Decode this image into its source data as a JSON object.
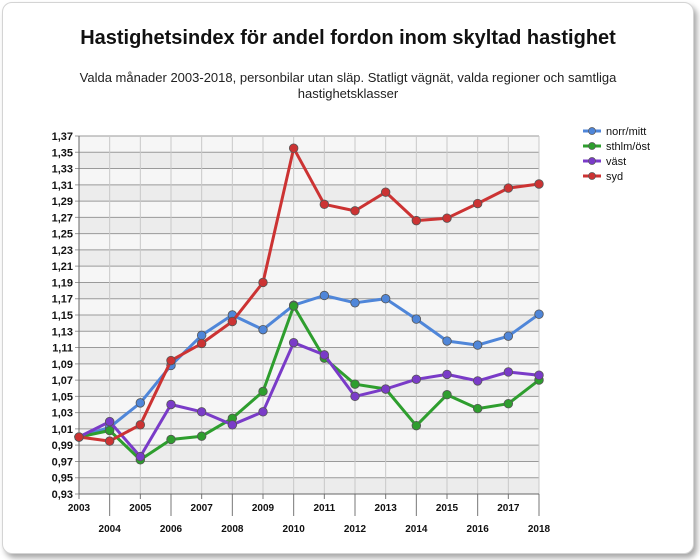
{
  "chart_data": {
    "type": "line",
    "title": "Hastighetsindex för andel fordon inom skyltad hastighet",
    "subtitle": "Valda månader 2003-2018, personbilar utan släp. Statligt vägnät, valda regioner och samtliga hastighetsklasser",
    "xlabel": "",
    "ylabel": "",
    "categories": [
      "2003",
      "2004",
      "2005",
      "2006",
      "2007",
      "2008",
      "2009",
      "2010",
      "2011",
      "2012",
      "2013",
      "2014",
      "2015",
      "2016",
      "2017",
      "2018"
    ],
    "ylim": [
      0.93,
      1.37
    ],
    "ytick_step": 0.02,
    "yticks": [
      "0,93",
      "0,95",
      "0,97",
      "0,99",
      "1,01",
      "1,03",
      "1,05",
      "1,07",
      "1,09",
      "1,11",
      "1,13",
      "1,15",
      "1,17",
      "1,19",
      "1,21",
      "1,23",
      "1,25",
      "1,27",
      "1,29",
      "1,31",
      "1,33",
      "1,35",
      "1,37"
    ],
    "grid": true,
    "legend_position": "top-right",
    "series": [
      {
        "name": "norr/mitt",
        "color": "#4f86d9",
        "values": [
          1.0,
          1.012,
          1.042,
          1.088,
          1.125,
          1.15,
          1.132,
          1.162,
          1.174,
          1.165,
          1.17,
          1.145,
          1.118,
          1.113,
          1.124,
          1.151
        ]
      },
      {
        "name": "sthlm/öst",
        "color": "#2e9e2e",
        "values": [
          1.0,
          1.008,
          0.972,
          0.997,
          1.001,
          1.023,
          1.056,
          1.161,
          1.097,
          1.065,
          1.059,
          1.014,
          1.052,
          1.035,
          1.041,
          1.07
        ]
      },
      {
        "name": "väst",
        "color": "#7a3bc8",
        "values": [
          1.0,
          1.019,
          0.976,
          1.04,
          1.031,
          1.015,
          1.031,
          1.116,
          1.101,
          1.05,
          1.059,
          1.071,
          1.077,
          1.069,
          1.08,
          1.076
        ]
      },
      {
        "name": "syd",
        "color": "#cc3333",
        "values": [
          1.0,
          0.995,
          1.015,
          1.094,
          1.115,
          1.142,
          1.19,
          1.355,
          1.286,
          1.278,
          1.301,
          1.266,
          1.269,
          1.287,
          1.306,
          1.311
        ]
      }
    ]
  }
}
